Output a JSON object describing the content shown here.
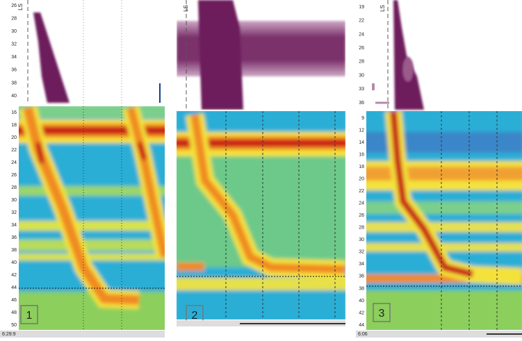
{
  "panels": [
    {
      "label": "1",
      "marker": "LS",
      "time": "6:29:9",
      "top_ticks": [
        "26",
        "28",
        "30",
        "32",
        "34",
        "36",
        "38",
        "40"
      ],
      "heat_ticks": [
        "16",
        "18",
        "20",
        "22",
        "24",
        "26",
        "28",
        "30",
        "32",
        "34",
        "36",
        "38",
        "40",
        "42",
        "44",
        "46",
        "48",
        "50"
      ]
    },
    {
      "label": "2",
      "marker": "LS"
    },
    {
      "label": "3",
      "marker": "LS",
      "time": "6:06",
      "top_ticks": [
        "19",
        "22",
        "24",
        "26",
        "28",
        "30",
        "33",
        "36"
      ],
      "heat_ticks": [
        "9",
        "12",
        "14",
        "16",
        "18",
        "20",
        "22",
        "24",
        "26",
        "28",
        "30",
        "32",
        "34",
        "36",
        "38",
        "40",
        "42",
        "44"
      ]
    }
  ]
}
